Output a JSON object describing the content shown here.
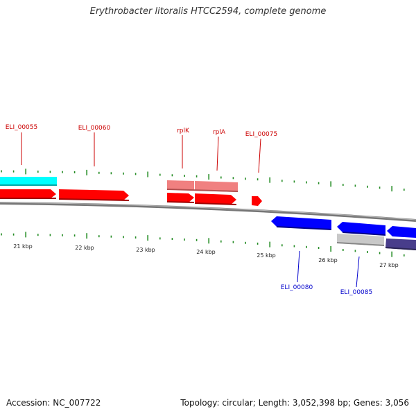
{
  "title": "Erythrobacter litoralis HTCC2594, complete genome",
  "footer": {
    "accession": "Accession: NC_007722",
    "stats": "Topology: circular; Length: 3,052,398 bp; Genes: 3,056"
  },
  "colors": {
    "forward_cds": "#ff0000",
    "forward_rna": "#f08080",
    "reverse_cds": "#0000ff",
    "reverse_rna": "#c0c0c0",
    "other_feature_cyan": "#00ffff",
    "other_feature_navy": "#483d8b",
    "backbone": "#808080",
    "ticks": "#228b22",
    "forward_label": "#cc0000",
    "reverse_label": "#0000cc"
  },
  "scale_ticks": [
    {
      "label": "21 kbp"
    },
    {
      "label": "22 kbp"
    },
    {
      "label": "23 kbp"
    },
    {
      "label": "24 kbp"
    },
    {
      "label": "25 kbp"
    },
    {
      "label": "26 kbp"
    },
    {
      "label": "27 kbp"
    }
  ],
  "gene_labels": [
    {
      "text": "ELI_00055",
      "strand": "forward"
    },
    {
      "text": "ELI_00060",
      "strand": "forward"
    },
    {
      "text": "rplK",
      "strand": "forward"
    },
    {
      "text": "rplA",
      "strand": "forward"
    },
    {
      "text": "ELI_00075",
      "strand": "forward"
    },
    {
      "text": "ELI_00080",
      "strand": "reverse"
    },
    {
      "text": "ELI_00085",
      "strand": "reverse"
    }
  ]
}
